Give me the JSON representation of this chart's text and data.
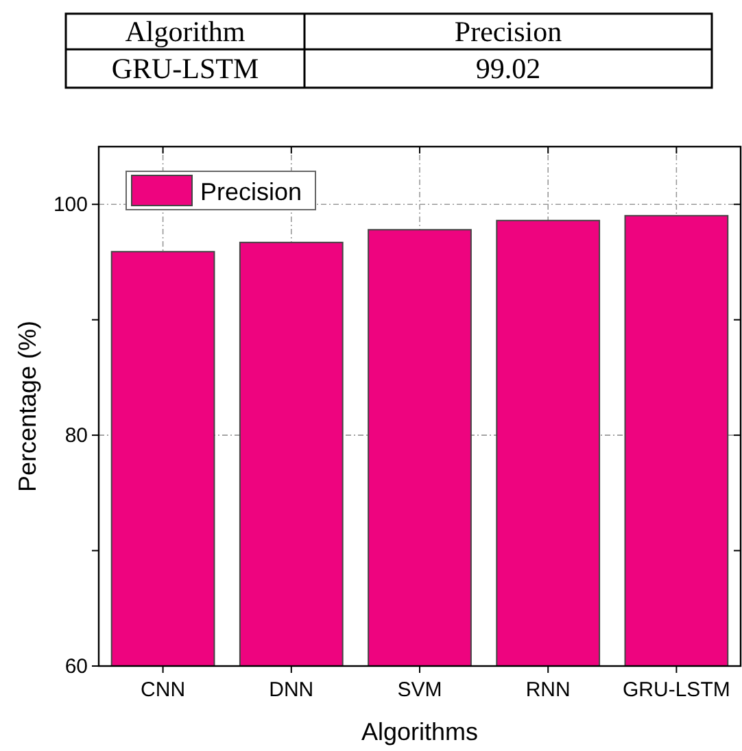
{
  "chart_data": {
    "type": "bar",
    "xlabel": "Algorithms",
    "ylabel": "Percentage (%)",
    "categories": [
      "CNN",
      "DNN",
      "SVM",
      "RNN",
      "GRU-LSTM"
    ],
    "series": [
      {
        "name": "Precision",
        "color": "#ee047f",
        "values": [
          95.9,
          96.7,
          97.8,
          98.6,
          99.02
        ]
      }
    ],
    "ylim": [
      60,
      105
    ],
    "yticks": [
      60,
      {
        "value": 70,
        "label": null
      },
      80,
      {
        "value": 90,
        "label": null
      },
      100
    ],
    "grid": true,
    "legend": "top left",
    "annotations": [
      "Algorithm",
      "Precision",
      "GRU-LSTM",
      "99.02"
    ]
  }
}
